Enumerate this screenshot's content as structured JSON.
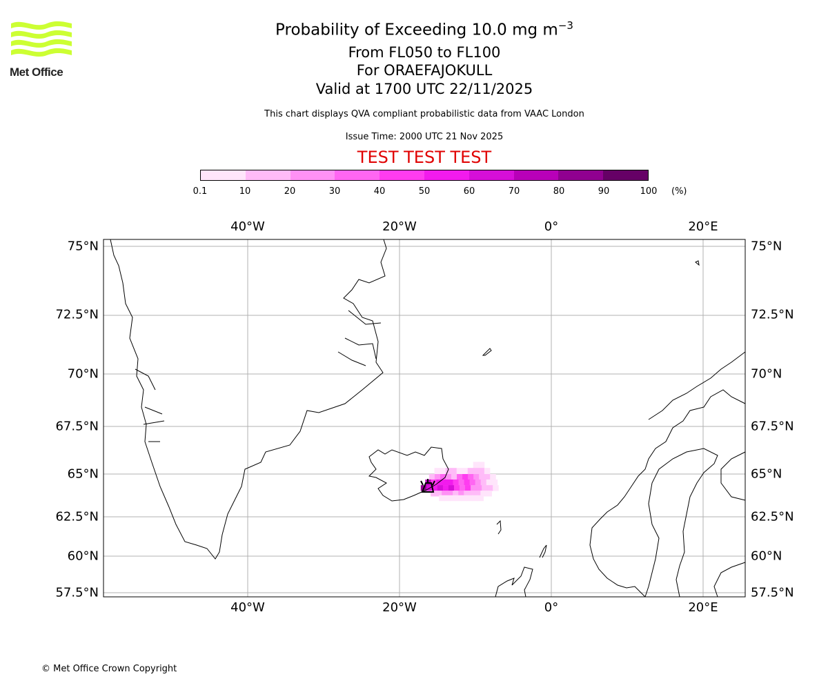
{
  "logo": {
    "text": "Met Office",
    "color": "#ccff33"
  },
  "title": {
    "line1_main": "Probability of Exceeding 10.0 mg m",
    "line1_sup": "−3",
    "line2": "From FL050 to FL100",
    "line3": "For ORAEFAJOKULL",
    "line4": "Valid at 1700 UTC 22/11/2025"
  },
  "subtitle": "This chart displays QVA compliant probabilistic data from VAAC London",
  "issue_time": "Issue Time: 2000 UTC 21 Nov 2025",
  "test_banner": {
    "text": "TEST TEST TEST",
    "color": "#e00000"
  },
  "colorbar": {
    "ticks": [
      "0.1",
      "10",
      "20",
      "30",
      "40",
      "50",
      "60",
      "70",
      "80",
      "90",
      "100"
    ],
    "unit": "(%)",
    "colors": [
      "#ffe5fb",
      "#ffbbf8",
      "#ff91f5",
      "#ff66f2",
      "#ff3cf0",
      "#f21bed",
      "#d60fd8",
      "#b800b8",
      "#900090",
      "#660066"
    ]
  },
  "map": {
    "lon_labels": [
      "40°W",
      "20°W",
      "0°",
      "20°E"
    ],
    "lat_labels": [
      "75°N",
      "72.5°N",
      "70°N",
      "67.5°N",
      "65°N",
      "62.5°N",
      "60°N",
      "57.5°N"
    ],
    "volcano": {
      "name": "ORAEFAJOKULL",
      "lon": -16.6,
      "lat": 64.0,
      "icon": "volcano-icon"
    }
  },
  "chart_data": {
    "type": "heatmap",
    "title": "Probability of Exceeding 10.0 mg m-3",
    "units": "%",
    "cell_lon_step": 0.73,
    "cell_lat_step": 0.32,
    "rows": [
      {
        "lat": 65.48,
        "lon_start": -10.3,
        "values": [
          5,
          5
        ]
      },
      {
        "lat": 65.16,
        "lon_start": -15.4,
        "values": [
          5,
          5,
          15,
          15,
          5,
          5,
          15,
          15,
          15,
          5
        ]
      },
      {
        "lat": 64.84,
        "lon_start": -16.1,
        "values": [
          15,
          25,
          35,
          25,
          15,
          35,
          45,
          35,
          25,
          15,
          15,
          5
        ]
      },
      {
        "lat": 64.52,
        "lon_start": -16.6,
        "values": [
          75,
          45,
          55,
          55,
          55,
          45,
          35,
          45,
          35,
          25,
          15,
          5,
          5
        ]
      },
      {
        "lat": 64.19,
        "lon_start": -17.2,
        "values": [
          85,
          65,
          55,
          65,
          55,
          65,
          45,
          35,
          45,
          25,
          25,
          15,
          15,
          5
        ]
      },
      {
        "lat": 63.87,
        "lon_start": -15.9,
        "values": [
          15,
          15,
          25,
          25,
          15,
          25,
          15,
          15,
          15,
          5,
          5
        ]
      },
      {
        "lat": 63.6,
        "lon_start": -14.8,
        "values": [
          5,
          5,
          5,
          5,
          5,
          5,
          5,
          5
        ]
      }
    ]
  },
  "footer": "© Met Office Crown Copyright"
}
